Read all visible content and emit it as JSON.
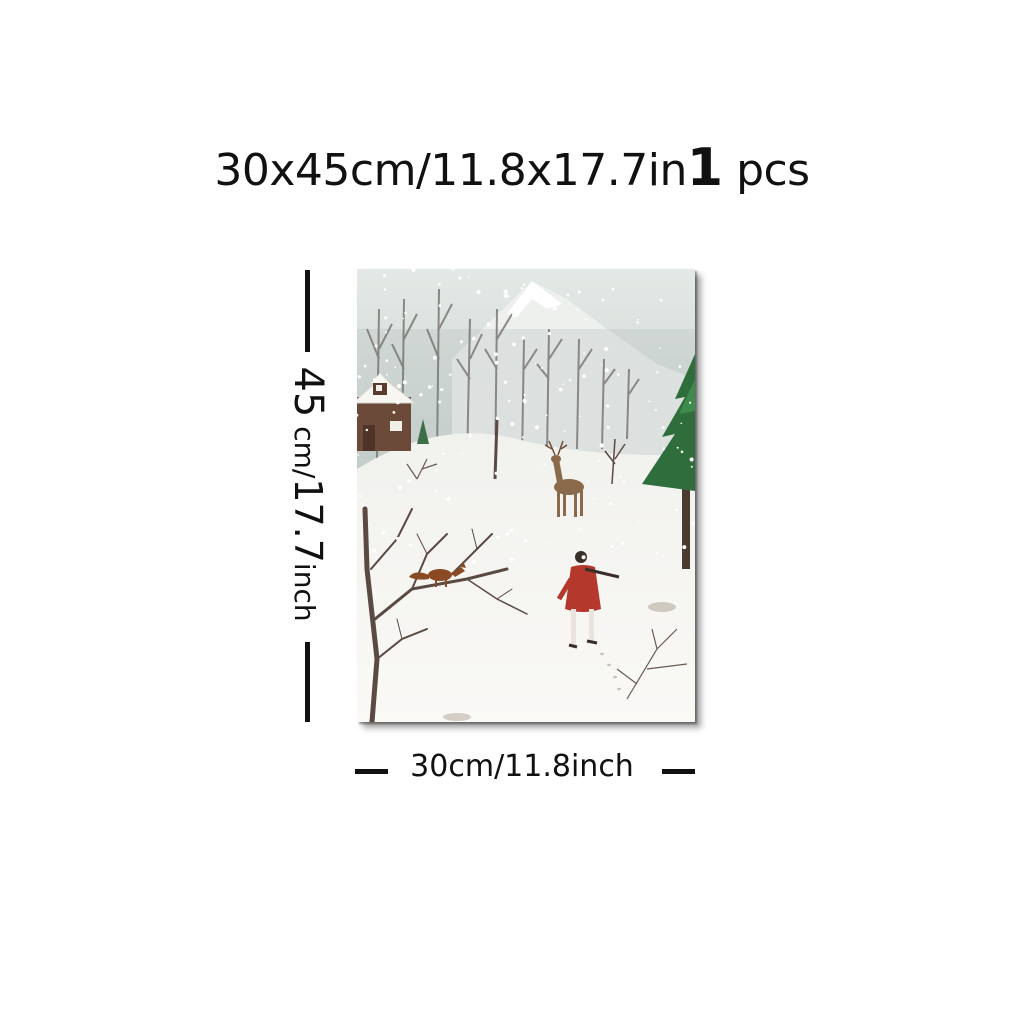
{
  "product": {
    "size_title": "30x45cm/11.8x17.7in",
    "quantity": "1",
    "quantity_unit": "pcs"
  },
  "dimensions": {
    "height_value": "45",
    "height_unit": "cm/",
    "height_value_in": "17.7",
    "height_unit_in": "inch",
    "width_label": "30cm/11.8inch"
  },
  "artwork": {
    "subject": "winter-forest-painting",
    "colors": {
      "sky": "#dfe6e4",
      "snow": "#f6f5f2",
      "cabin": "#6b4a3a",
      "pine": "#2f6e3c",
      "coat": "#b4382c",
      "fox": "#8a4a24",
      "deer": "#8a6a4a",
      "trees": "#5a4a42"
    }
  }
}
